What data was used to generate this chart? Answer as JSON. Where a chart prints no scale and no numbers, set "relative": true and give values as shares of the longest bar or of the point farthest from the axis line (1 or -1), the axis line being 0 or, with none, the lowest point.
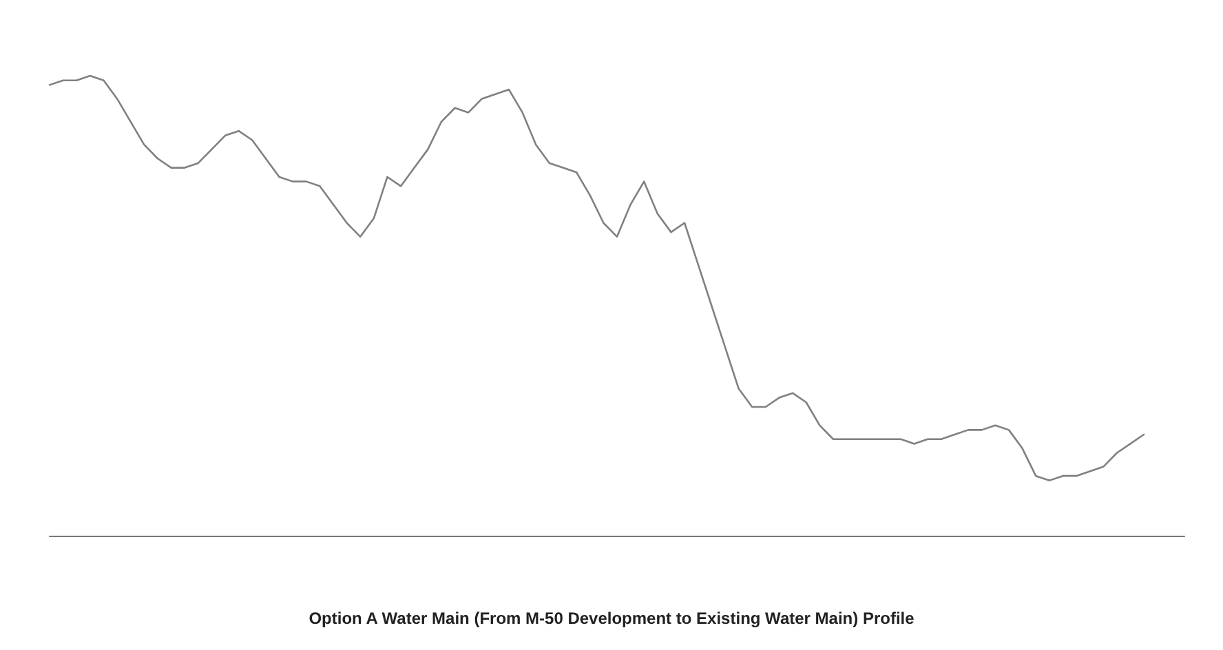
{
  "chart_data": {
    "type": "line",
    "title": "Option A Water Main (From M-50 Development to Existing Water Main) Profile",
    "relative": true,
    "categories": [
      null,
      null,
      null,
      null,
      null,
      null,
      null,
      null,
      null,
      null,
      null,
      null,
      null,
      null,
      null,
      null,
      null,
      null,
      null,
      null,
      null,
      null,
      null,
      null,
      null,
      null,
      null,
      null,
      null,
      null,
      null,
      null,
      null,
      null,
      null,
      null,
      null,
      null,
      null,
      null,
      null,
      null,
      null,
      null,
      null,
      null,
      null,
      null,
      null,
      null,
      null,
      null,
      null,
      null,
      null,
      null,
      null,
      null,
      null,
      null,
      null,
      null,
      null,
      null,
      null,
      null,
      null,
      null,
      null,
      null,
      null,
      null,
      null,
      null,
      null,
      null,
      null,
      null,
      null,
      null,
      null,
      null,
      null,
      null,
      null
    ],
    "series": [
      {
        "color": "#808080",
        "values": [
          0.98,
          0.99,
          0.99,
          1.0,
          0.99,
          0.95,
          0.9,
          0.85,
          0.82,
          0.8,
          0.8,
          0.81,
          0.84,
          0.87,
          0.88,
          0.86,
          0.82,
          0.78,
          0.77,
          0.77,
          0.76,
          0.72,
          0.68,
          0.65,
          0.69,
          0.78,
          0.76,
          0.8,
          0.84,
          0.9,
          0.93,
          0.92,
          0.95,
          0.96,
          0.97,
          0.92,
          0.85,
          0.81,
          0.8,
          0.79,
          0.74,
          0.68,
          0.65,
          0.72,
          0.77,
          0.7,
          0.66,
          0.68,
          0.59,
          0.5,
          0.41,
          0.32,
          0.28,
          0.28,
          0.3,
          0.31,
          0.29,
          0.24,
          0.21,
          0.21,
          0.21,
          0.21,
          0.21,
          0.21,
          0.2,
          0.21,
          0.21,
          0.22,
          0.23,
          0.23,
          0.24,
          0.23,
          0.19,
          0.13,
          0.12,
          0.13,
          0.13,
          0.14,
          0.15,
          0.18,
          0.2,
          0.22,
          null,
          null,
          null
        ]
      }
    ],
    "grid": false,
    "marker": "none",
    "line_style": "solid"
  }
}
